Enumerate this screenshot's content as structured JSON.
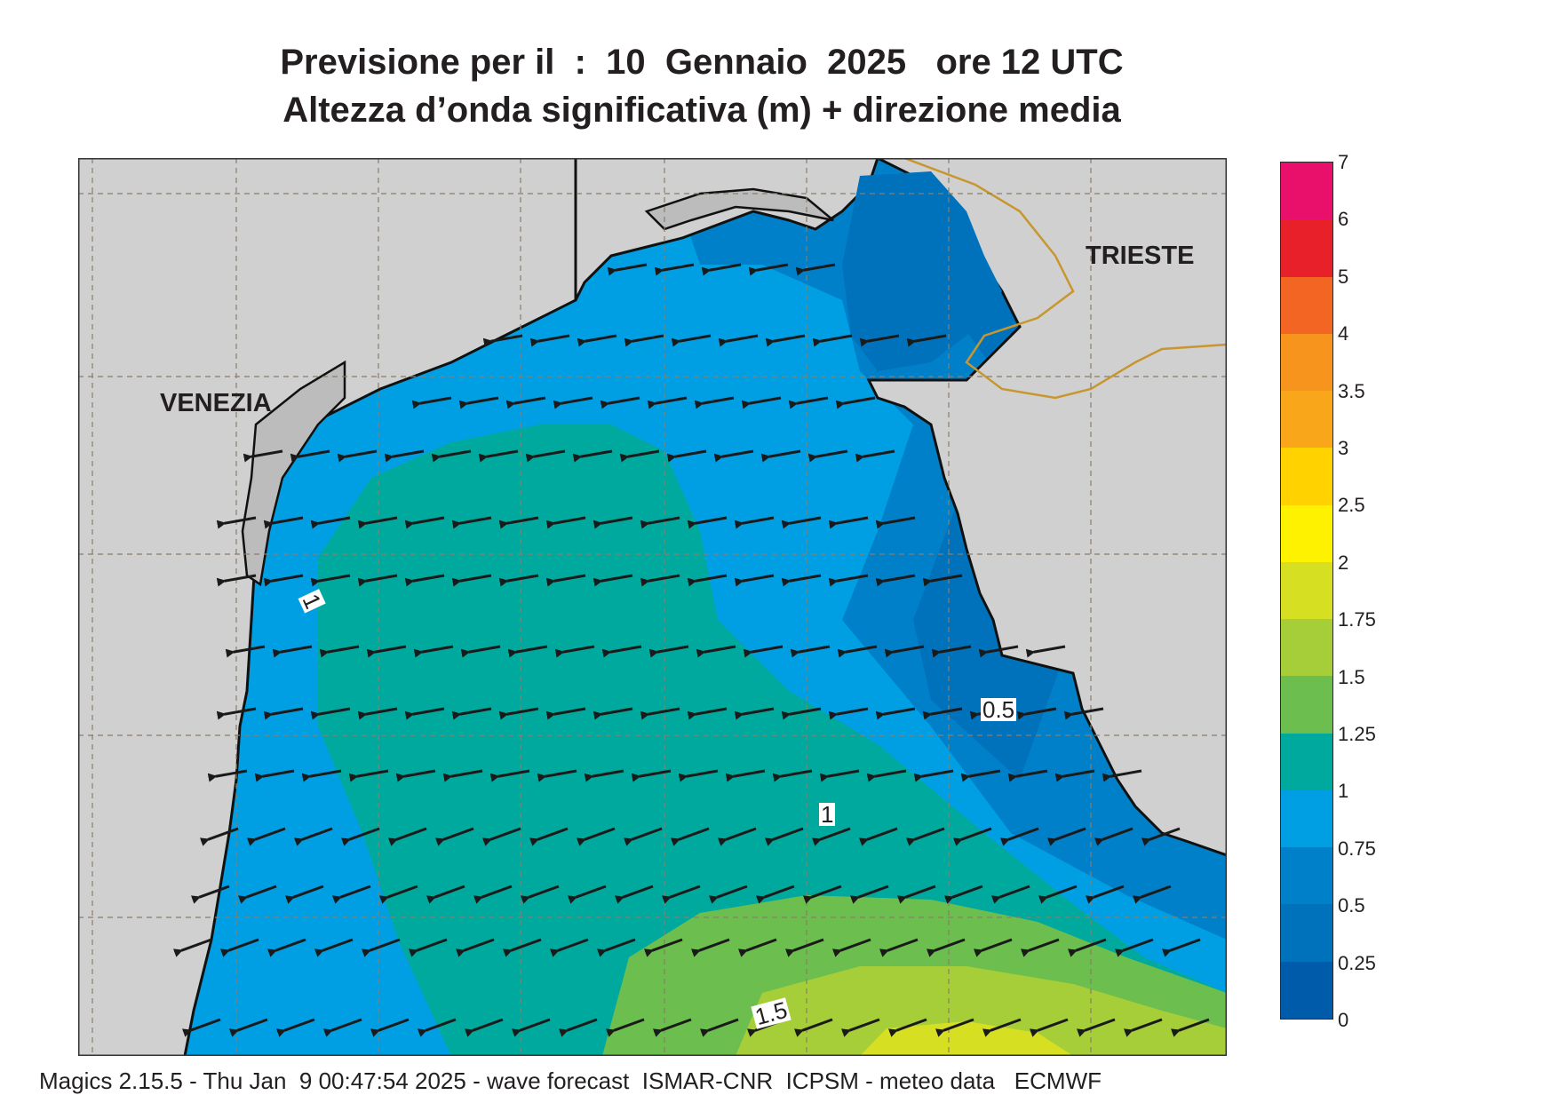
{
  "title": {
    "line1": "Previsione per il  :  10  Gennaio  2025   ore 12 UTC",
    "line2": "Altezza d’onda significativa (m) + direzione media"
  },
  "cities": {
    "venezia": "VENEZIA",
    "trieste": "TRIESTE"
  },
  "contour_labels": [
    "1",
    "0.5",
    "1",
    "1.5"
  ],
  "legend": {
    "levels": [
      "7",
      "6",
      "5",
      "4",
      "3.5",
      "3",
      "2.5",
      "2",
      "1.75",
      "1.5",
      "1.25",
      "1",
      "0.75",
      "0.5",
      "0.25",
      "0"
    ],
    "colors_top_to_bottom": [
      "#e8106a",
      "#e8202a",
      "#f26522",
      "#f7941d",
      "#faa61a",
      "#ffd200",
      "#fff200",
      "#d7df23",
      "#a6ce39",
      "#6cbf4e",
      "#00a99d",
      "#009fe3",
      "#0080c8",
      "#0072bc",
      "#005baa"
    ]
  },
  "map": {
    "land_color": "#d0d0d0",
    "border_color": "#c8962e",
    "arrow_direction": "W / WSW (pointing towards the Italian coast)"
  },
  "footer": "Magics 2.15.5 - Thu Jan  9 00:47:54 2025 - wave forecast  ISMAR-CNR  ICPSM - meteo data   ECMWF"
}
